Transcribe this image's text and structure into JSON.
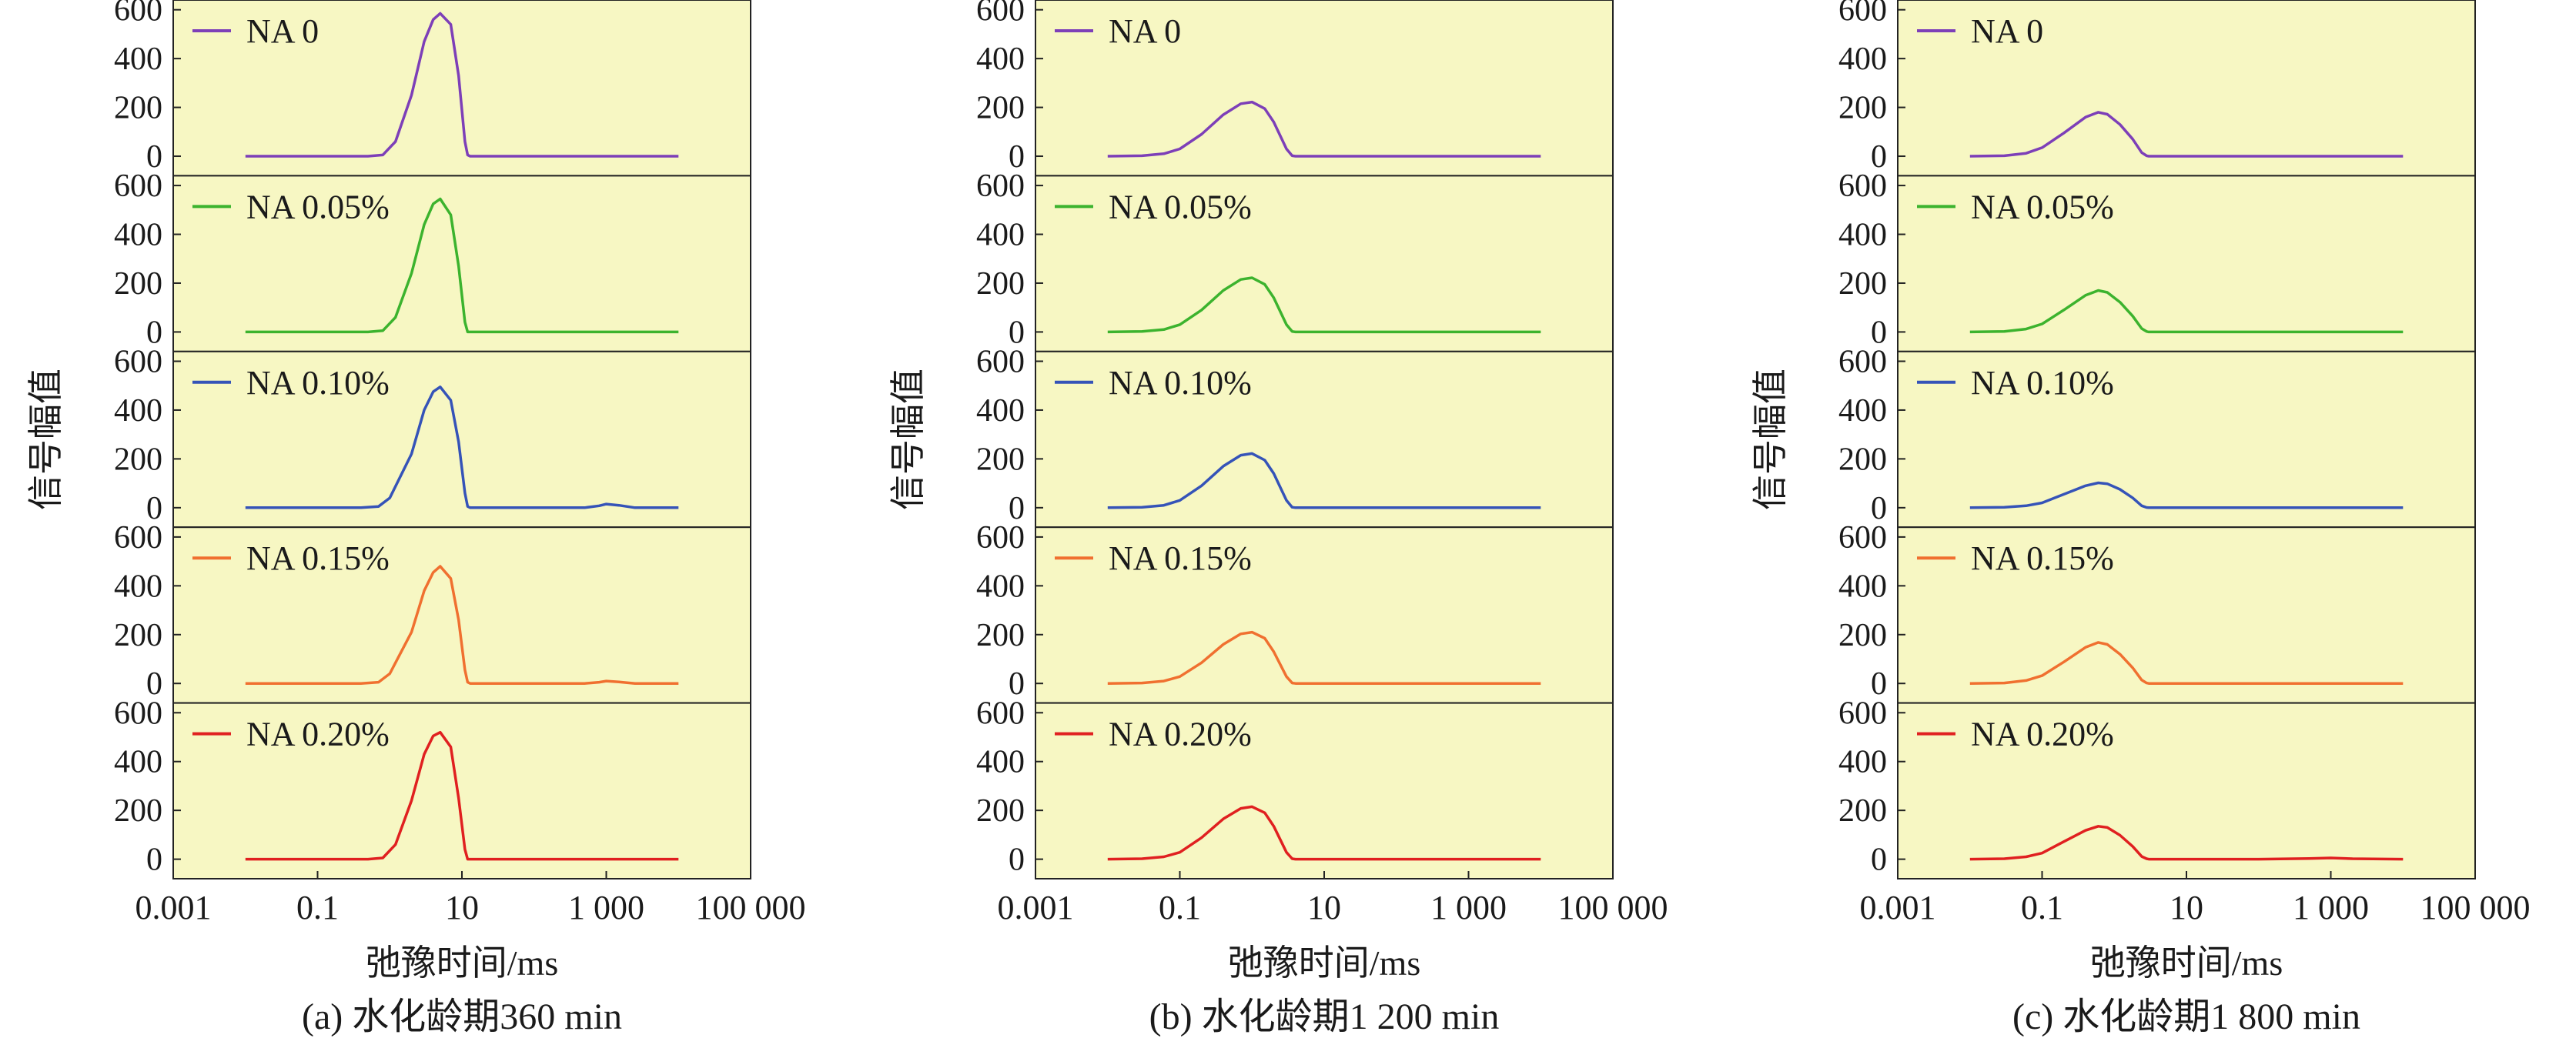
{
  "chart_data": [
    {
      "type": "line",
      "caption": "(a) 水化龄期360 min",
      "xlabel": "弛豫时间/ms",
      "ylabel": "信号幅值",
      "x_scale": "log",
      "xlim": [
        0.001,
        100000
      ],
      "x_ticks": [
        "0.001",
        "0.1",
        "10",
        "1 000",
        "100 000"
      ],
      "ylim": [
        -80,
        640
      ],
      "y_ticks": [
        "0",
        "200",
        "400",
        "600"
      ],
      "grid": false,
      "legend_position": "top-left",
      "series": [
        {
          "name": "NA 0",
          "color": "#7d3fb8",
          "x": [
            0.01,
            0.5,
            0.8,
            1.2,
            2,
            3,
            4,
            5,
            7,
            9,
            11,
            12,
            13,
            100,
            1000,
            10000
          ],
          "y": [
            0,
            0,
            5,
            60,
            250,
            470,
            560,
            585,
            540,
            330,
            60,
            5,
            0,
            0,
            0,
            0
          ]
        },
        {
          "name": "NA 0.05%",
          "color": "#3cb32e",
          "x": [
            0.01,
            0.5,
            0.8,
            1.2,
            2,
            3,
            4,
            5,
            7,
            9,
            11,
            12,
            13,
            100,
            1000,
            10000
          ],
          "y": [
            0,
            0,
            5,
            60,
            240,
            440,
            525,
            545,
            480,
            270,
            40,
            0,
            0,
            0,
            0,
            0
          ]
        },
        {
          "name": "NA 0.10%",
          "color": "#3553b8",
          "x": [
            0.01,
            0.4,
            0.7,
            1,
            2,
            3,
            4,
            5,
            7,
            9,
            11,
            12,
            13,
            100,
            500,
            800,
            1000,
            1500,
            2500,
            10000
          ],
          "y": [
            0,
            0,
            5,
            40,
            220,
            400,
            475,
            495,
            440,
            270,
            60,
            5,
            0,
            0,
            0,
            8,
            15,
            10,
            0,
            0
          ]
        },
        {
          "name": "NA 0.15%",
          "color": "#f07030",
          "x": [
            0.01,
            0.4,
            0.7,
            1,
            2,
            3,
            4,
            5,
            7,
            9,
            11,
            12,
            13,
            100,
            500,
            800,
            1000,
            1500,
            2500,
            10000
          ],
          "y": [
            0,
            0,
            5,
            40,
            210,
            380,
            455,
            480,
            430,
            260,
            55,
            5,
            0,
            0,
            0,
            5,
            10,
            6,
            0,
            0
          ]
        },
        {
          "name": "NA 0.20%",
          "color": "#e02020",
          "x": [
            0.01,
            0.5,
            0.8,
            1.2,
            2,
            3,
            4,
            5,
            7,
            9,
            11,
            12,
            13,
            100,
            1000,
            10000
          ],
          "y": [
            0,
            0,
            5,
            60,
            240,
            430,
            505,
            520,
            460,
            250,
            40,
            0,
            0,
            0,
            0,
            0
          ]
        }
      ]
    },
    {
      "type": "line",
      "caption": "(b) 水化龄期1 200 min",
      "xlabel": "弛豫时间/ms",
      "ylabel": "信号幅值",
      "x_scale": "log",
      "xlim": [
        0.001,
        100000
      ],
      "x_ticks": [
        "0.001",
        "0.1",
        "10",
        "1 000",
        "100 000"
      ],
      "ylim": [
        -80,
        640
      ],
      "y_ticks": [
        "0",
        "200",
        "400",
        "600"
      ],
      "grid": false,
      "legend_position": "top-left",
      "series": [
        {
          "name": "NA 0",
          "color": "#7d3fb8",
          "x": [
            0.01,
            0.03,
            0.06,
            0.1,
            0.2,
            0.4,
            0.7,
            1,
            1.5,
            2,
            3,
            3.6,
            4,
            10,
            100,
            1000,
            10000
          ],
          "y": [
            0,
            2,
            10,
            30,
            90,
            170,
            215,
            222,
            195,
            140,
            30,
            2,
            0,
            0,
            0,
            0,
            0
          ]
        },
        {
          "name": "NA 0.05%",
          "color": "#3cb32e",
          "x": [
            0.01,
            0.03,
            0.06,
            0.1,
            0.2,
            0.4,
            0.7,
            1,
            1.5,
            2,
            3,
            3.6,
            4,
            10,
            100,
            1000,
            10000
          ],
          "y": [
            0,
            2,
            10,
            30,
            90,
            170,
            215,
            222,
            195,
            140,
            30,
            2,
            0,
            0,
            0,
            0,
            0
          ]
        },
        {
          "name": "NA 0.10%",
          "color": "#3553b8",
          "x": [
            0.01,
            0.03,
            0.06,
            0.1,
            0.2,
            0.4,
            0.7,
            1,
            1.5,
            2,
            3,
            3.6,
            4,
            10,
            100,
            1000,
            10000
          ],
          "y": [
            0,
            2,
            10,
            30,
            90,
            170,
            215,
            222,
            195,
            140,
            30,
            2,
            0,
            0,
            0,
            0,
            0
          ]
        },
        {
          "name": "NA 0.15%",
          "color": "#f07030",
          "x": [
            0.01,
            0.03,
            0.06,
            0.1,
            0.2,
            0.4,
            0.7,
            1,
            1.5,
            2,
            3,
            3.6,
            4,
            10,
            100,
            1000,
            10000
          ],
          "y": [
            0,
            2,
            10,
            28,
            85,
            160,
            203,
            210,
            185,
            130,
            28,
            2,
            0,
            0,
            0,
            0,
            0
          ]
        },
        {
          "name": "NA 0.20%",
          "color": "#e02020",
          "x": [
            0.01,
            0.03,
            0.06,
            0.1,
            0.2,
            0.4,
            0.7,
            1,
            1.5,
            2,
            3,
            3.6,
            4,
            10,
            100,
            1000,
            10000
          ],
          "y": [
            0,
            2,
            10,
            28,
            88,
            165,
            208,
            215,
            190,
            135,
            28,
            2,
            0,
            0,
            0,
            0,
            0
          ]
        }
      ]
    },
    {
      "type": "line",
      "caption": "(c) 水化龄期1 800 min",
      "xlabel": "弛豫时间/ms",
      "ylabel": "信号幅值",
      "x_scale": "log",
      "xlim": [
        0.001,
        100000
      ],
      "x_ticks": [
        "0.001",
        "0.1",
        "10",
        "1 000",
        "100 000"
      ],
      "ylim": [
        -80,
        640
      ],
      "y_ticks": [
        "0",
        "200",
        "400",
        "600"
      ],
      "grid": false,
      "legend_position": "top-left",
      "series": [
        {
          "name": "NA 0",
          "color": "#7d3fb8",
          "x": [
            0.01,
            0.03,
            0.06,
            0.1,
            0.2,
            0.4,
            0.6,
            0.8,
            1.2,
            1.8,
            2.4,
            2.8,
            3,
            10,
            100,
            1000,
            10000
          ],
          "y": [
            0,
            2,
            12,
            35,
            95,
            160,
            180,
            172,
            130,
            70,
            15,
            2,
            0,
            0,
            0,
            0,
            0
          ]
        },
        {
          "name": "NA 0.05%",
          "color": "#3cb32e",
          "x": [
            0.01,
            0.03,
            0.06,
            0.1,
            0.2,
            0.4,
            0.6,
            0.8,
            1.2,
            1.8,
            2.4,
            2.8,
            3,
            10,
            100,
            1000,
            10000
          ],
          "y": [
            0,
            2,
            12,
            33,
            90,
            150,
            170,
            162,
            122,
            65,
            14,
            2,
            0,
            0,
            0,
            0,
            0
          ]
        },
        {
          "name": "NA 0.10%",
          "color": "#3553b8",
          "x": [
            0.01,
            0.03,
            0.06,
            0.1,
            0.2,
            0.4,
            0.6,
            0.8,
            1.2,
            1.8,
            2.4,
            2.8,
            3,
            10,
            100,
            1000,
            10000
          ],
          "y": [
            0,
            2,
            8,
            20,
            55,
            90,
            102,
            98,
            75,
            40,
            8,
            1,
            0,
            0,
            0,
            0,
            0
          ]
        },
        {
          "name": "NA 0.15%",
          "color": "#f07030",
          "x": [
            0.01,
            0.03,
            0.06,
            0.1,
            0.2,
            0.4,
            0.6,
            0.8,
            1.2,
            1.8,
            2.4,
            2.8,
            3,
            10,
            100,
            1000,
            10000
          ],
          "y": [
            0,
            2,
            12,
            32,
            88,
            148,
            168,
            160,
            120,
            64,
            14,
            2,
            0,
            0,
            0,
            0,
            0
          ]
        },
        {
          "name": "NA 0.20%",
          "color": "#e02020",
          "x": [
            0.01,
            0.03,
            0.06,
            0.1,
            0.2,
            0.4,
            0.6,
            0.8,
            1.2,
            1.8,
            2.4,
            2.8,
            3,
            10,
            100,
            500,
            1000,
            2000,
            10000
          ],
          "y": [
            0,
            2,
            10,
            25,
            72,
            118,
            135,
            130,
            98,
            52,
            11,
            2,
            0,
            0,
            0,
            3,
            5,
            2,
            0
          ]
        }
      ]
    }
  ]
}
